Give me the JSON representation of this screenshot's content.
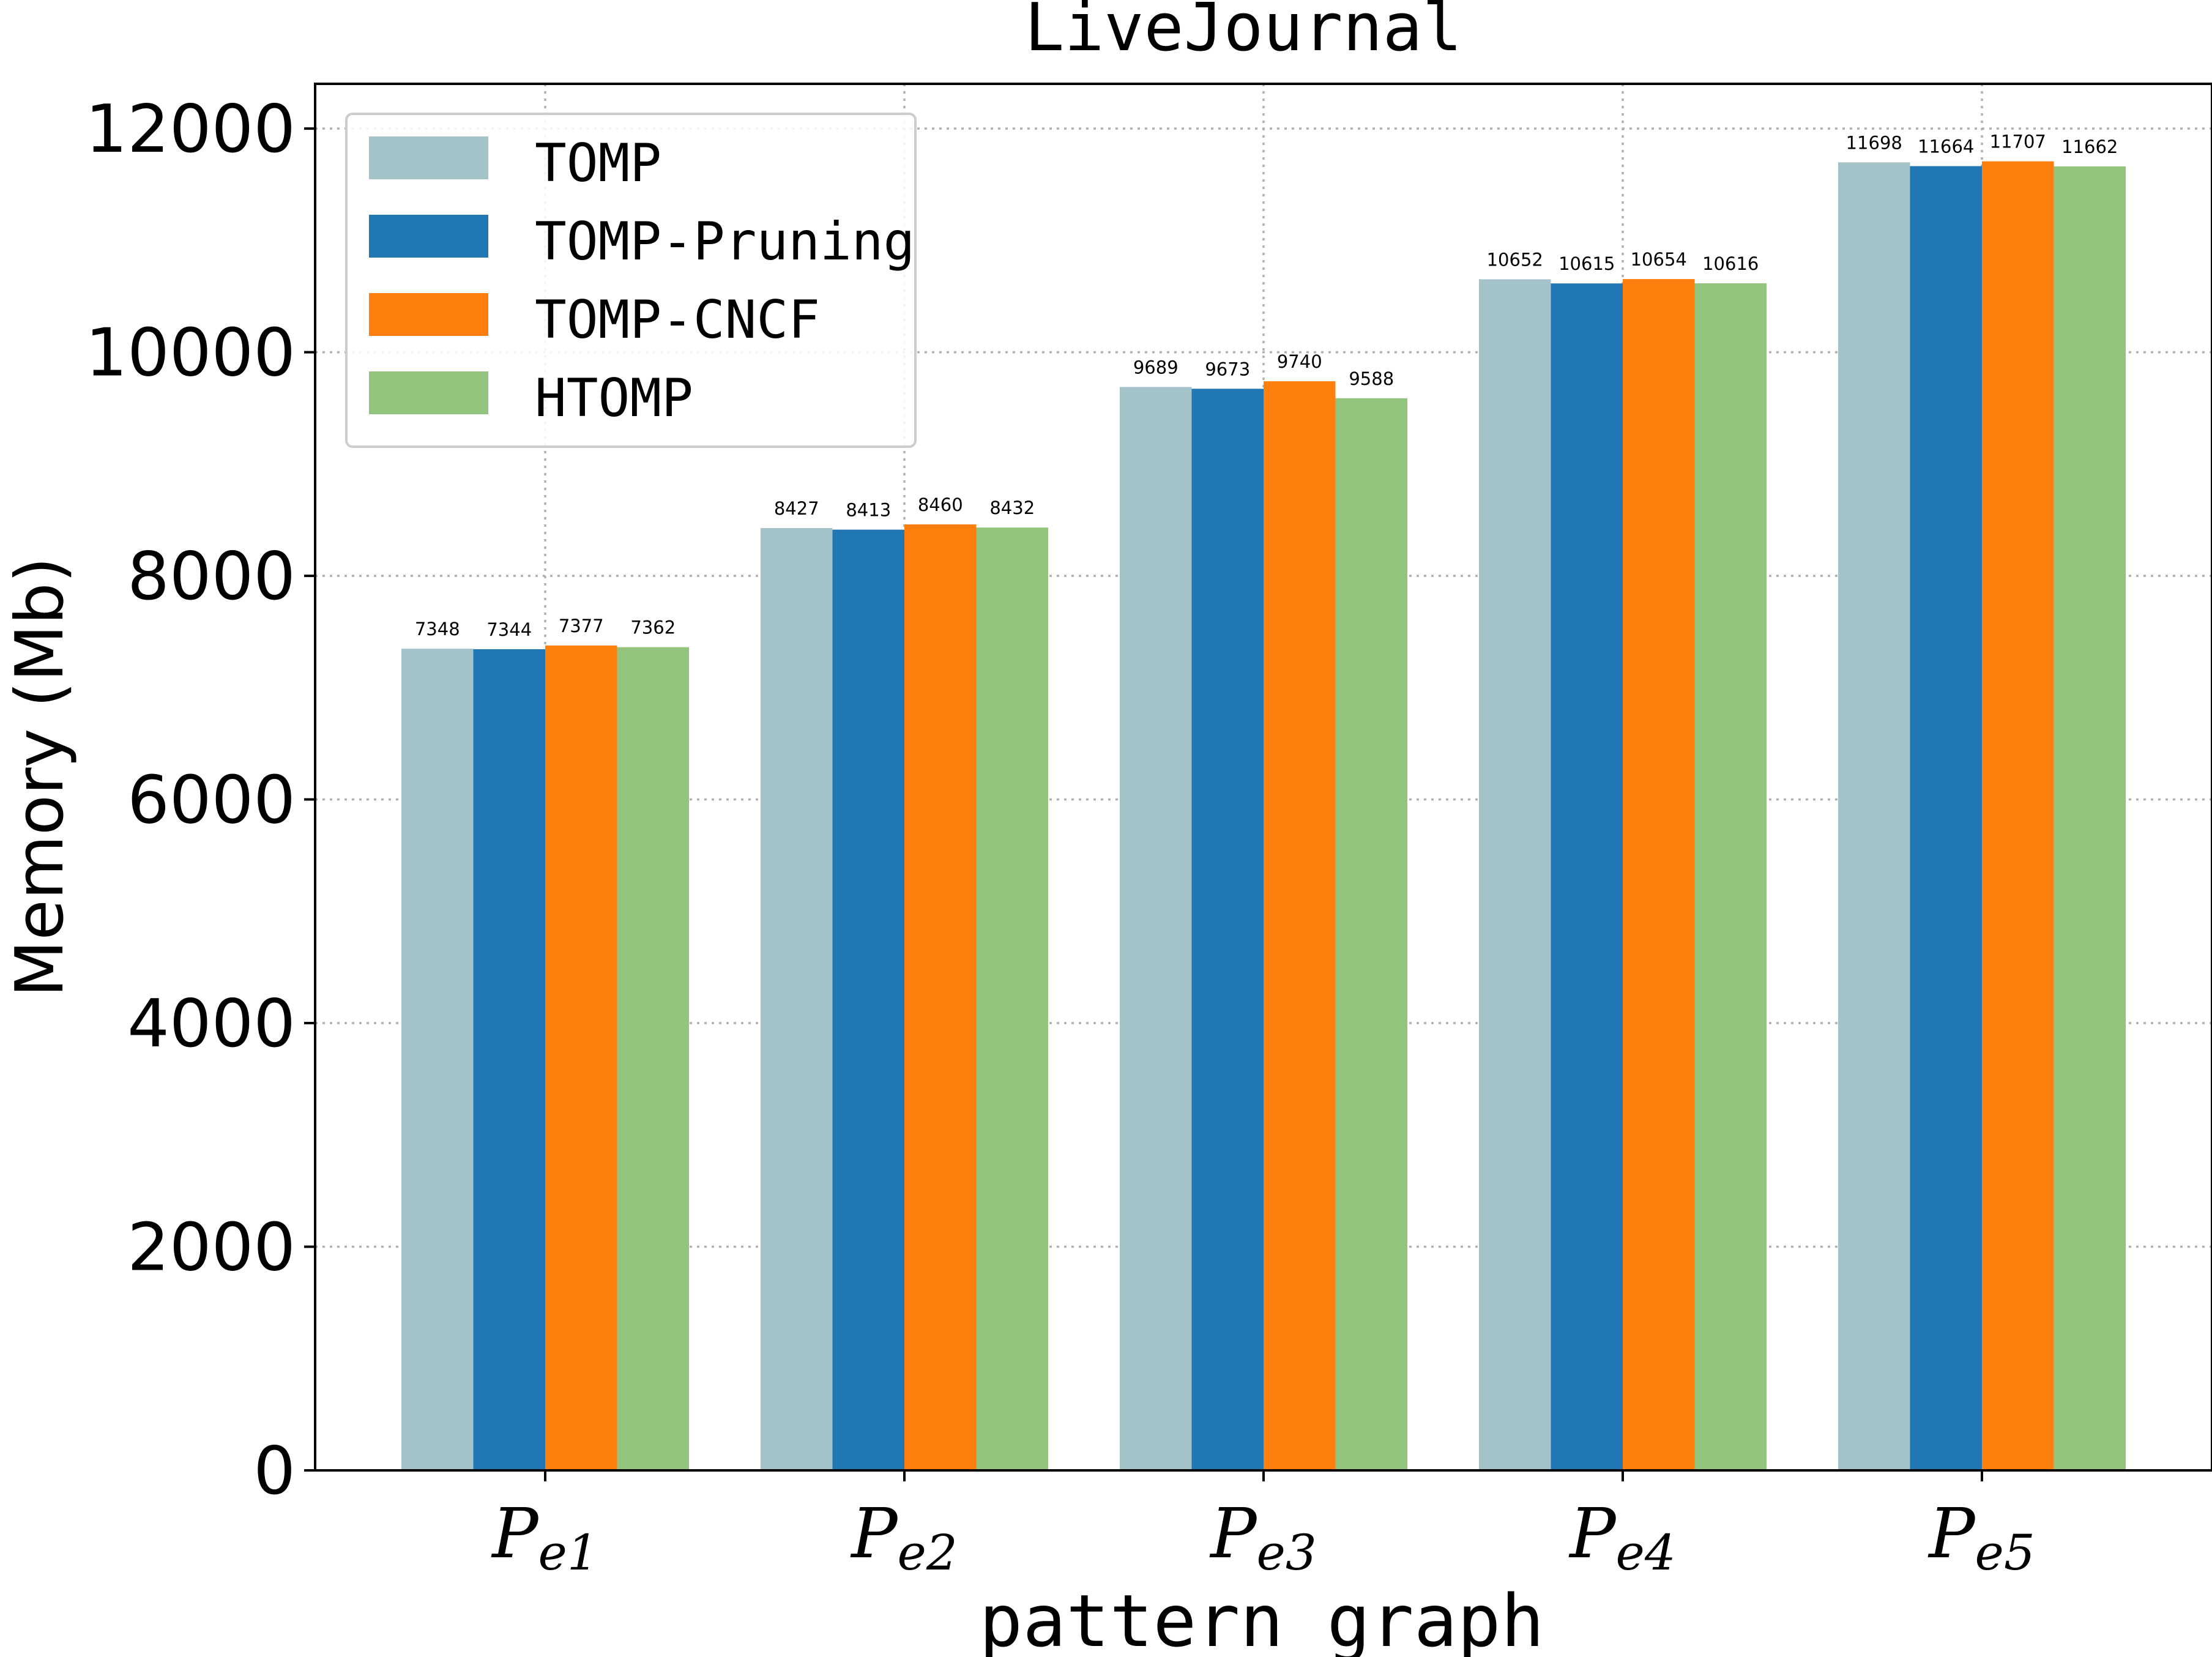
{
  "chart_data": {
    "type": "bar",
    "title": "LiveJournal",
    "xlabel": "pattern graph",
    "ylabel": "Memory (Mb)",
    "categories": [
      {
        "base": "P",
        "sub": "e1"
      },
      {
        "base": "P",
        "sub": "e2"
      },
      {
        "base": "P",
        "sub": "e3"
      },
      {
        "base": "P",
        "sub": "e4"
      },
      {
        "base": "P",
        "sub": "e5"
      }
    ],
    "series": [
      {
        "name": "TOMP",
        "color": "#a4c3c8",
        "values": [
          7348,
          8427,
          9689,
          10652,
          11698
        ]
      },
      {
        "name": "TOMP-Pruning",
        "color": "#2077b4",
        "values": [
          7344,
          8413,
          9673,
          10615,
          11664
        ]
      },
      {
        "name": "TOMP-CNCF",
        "color": "#ff7f0e",
        "values": [
          7377,
          8460,
          9740,
          10654,
          11707
        ]
      },
      {
        "name": "HTOMP",
        "color": "#93c47d",
        "values": [
          7362,
          8432,
          9588,
          10616,
          11662
        ]
      }
    ],
    "ylim": [
      0,
      12400
    ],
    "yticks": [
      0,
      2000,
      4000,
      6000,
      8000,
      10000,
      12000
    ],
    "grid": true,
    "grid_style": "dotted",
    "legend_position": "top-left",
    "data_labels": true
  }
}
